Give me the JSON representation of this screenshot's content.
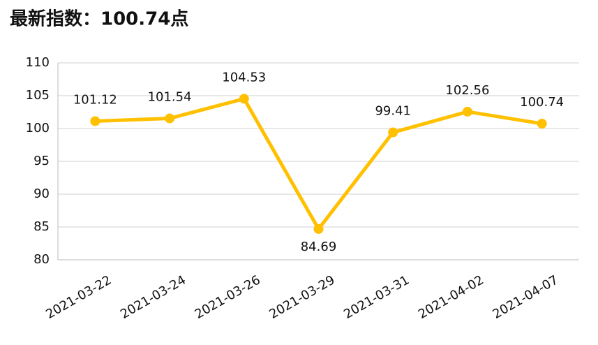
{
  "chart_data": {
    "type": "line",
    "title": "最新指数：100.74点",
    "categories": [
      "2021-03-22",
      "2021-03-24",
      "2021-03-26",
      "2021-03-29",
      "2021-03-31",
      "2021-04-02",
      "2021-04-07"
    ],
    "values": [
      101.12,
      101.54,
      104.53,
      84.69,
      99.41,
      102.56,
      100.74
    ],
    "color": "#FFC000",
    "ylim": [
      80,
      110
    ],
    "yticks": [
      80,
      85,
      90,
      95,
      100,
      105,
      110
    ],
    "grid": true
  }
}
